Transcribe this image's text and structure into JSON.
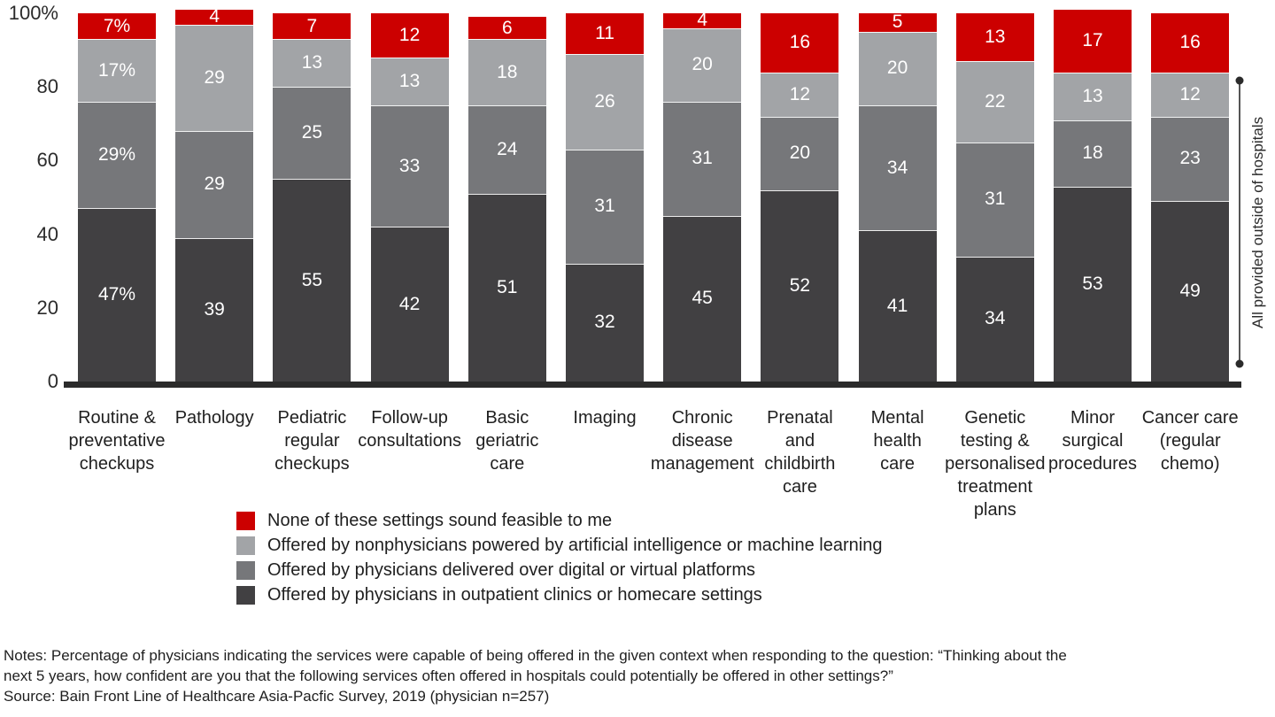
{
  "chart_data": {
    "type": "stacked-bar",
    "y_axis": {
      "tick_labels": [
        "100%",
        "80",
        "60",
        "40",
        "20",
        "0"
      ],
      "tick_values": [
        100,
        80,
        60,
        40,
        20,
        0
      ],
      "ylim": [
        0,
        100
      ]
    },
    "categories": [
      "Routine & preventative checkups",
      "Pathology",
      "Pediatric regular checkups",
      "Follow-up consultations",
      "Basic geriatric care",
      "Imaging",
      "Chronic disease management",
      "Prenatal and childbirth care",
      "Mental health care",
      "Genetic testing & personalised treatment plans",
      "Minor surgical procedures",
      "Cancer care (regular chemo)"
    ],
    "category_lines": [
      [
        "Routine &",
        "preventative",
        "checkups"
      ],
      [
        "Pathology"
      ],
      [
        "Pediatric",
        "regular",
        "checkups"
      ],
      [
        "Follow-up",
        "consultations"
      ],
      [
        "Basic",
        "geriatric",
        "care"
      ],
      [
        "Imaging"
      ],
      [
        "Chronic",
        "disease",
        "management"
      ],
      [
        "Prenatal",
        "and",
        "childbirth",
        "care"
      ],
      [
        "Mental",
        "health",
        "care"
      ],
      [
        "Genetic",
        "testing &",
        "personalised",
        "treatment",
        "plans"
      ],
      [
        "Minor",
        "surgical",
        "procedures"
      ],
      [
        "Cancer care",
        "(regular",
        "chemo)"
      ]
    ],
    "series": [
      {
        "name": "Offered by physicians in outpatient clinics or homecare settings",
        "color": "#414042",
        "values": [
          47,
          39,
          55,
          42,
          51,
          32,
          45,
          52,
          41,
          34,
          53,
          49
        ]
      },
      {
        "name": "Offered by physicians delivered over digital or virtual platforms",
        "color": "#76777A",
        "values": [
          29,
          29,
          25,
          33,
          24,
          31,
          31,
          20,
          34,
          31,
          18,
          23
        ]
      },
      {
        "name": "Offered by nonphysicians powered by artificial intelligence or machine learning",
        "color": "#A2A4A7",
        "values": [
          17,
          29,
          13,
          13,
          18,
          26,
          20,
          12,
          20,
          22,
          13,
          12
        ]
      },
      {
        "name": "None of these settings sound feasible to me",
        "color": "#CC0000",
        "values": [
          7,
          4,
          7,
          12,
          6,
          11,
          4,
          16,
          5,
          13,
          17,
          16
        ]
      }
    ],
    "first_category_label_suffix": "%",
    "grid": false,
    "legend_position": "bottom-left"
  },
  "legend": {
    "items": [
      {
        "label": "None of these settings sound feasible to me",
        "color": "#CC0000"
      },
      {
        "label": "Offered by nonphysicians powered by artificial intelligence or machine learning",
        "color": "#A2A4A7"
      },
      {
        "label": "Offered by physicians delivered over digital or virtual platforms",
        "color": "#76777A"
      },
      {
        "label": "Offered by physicians in outpatient clinics or homecare settings",
        "color": "#414042"
      }
    ]
  },
  "annotation": {
    "label": "All provided outside of hospitals"
  },
  "notes": {
    "text": [
      "Notes: Percentage of physicians indicating the services were capable of being offered in the given context when responding to the question: “Thinking about the",
      "next 5 years, how confident are you that the following services often offered in hospitals could potentially be offered in other settings?”"
    ],
    "source": "Source: Bain Front Line of Healthcare Asia-Pacfic Survey, 2019 (physician n=257)"
  }
}
